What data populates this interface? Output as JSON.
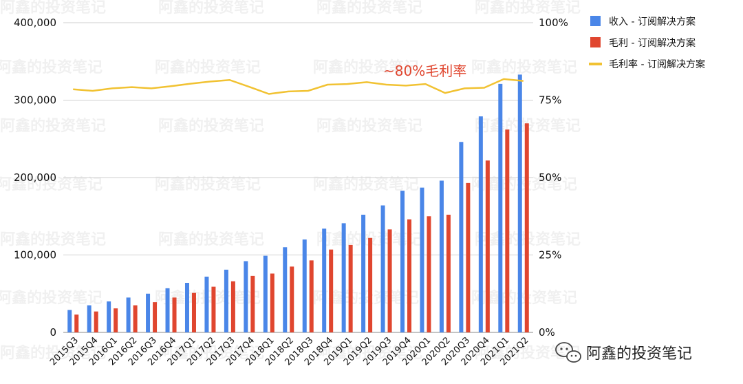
{
  "watermark": {
    "text": "阿鑫的投资笔记"
  },
  "brand": {
    "text": "阿鑫的投资笔记",
    "icon": "wechat-icon"
  },
  "chart_data": {
    "type": "bar",
    "categories": [
      "2015Q3",
      "2015Q4",
      "2016Q1",
      "2016Q2",
      "2016Q3",
      "2016Q4",
      "2017Q1",
      "2017Q2",
      "2017Q3",
      "2017Q4",
      "2018Q1",
      "2018Q2",
      "2018Q3",
      "2018Q4",
      "2019Q1",
      "2019Q2",
      "2019Q3",
      "2019Q4",
      "2020Q1",
      "2020Q2",
      "2020Q3",
      "2020Q4",
      "2021Q1",
      "2021Q2"
    ],
    "series": [
      {
        "name": "收入 - 订阅解决方案",
        "type": "bar",
        "axis": "left",
        "color": "#4a86e8",
        "values": [
          29000,
          35000,
          40000,
          45000,
          50000,
          57000,
          64000,
          72000,
          81000,
          92000,
          99000,
          110000,
          120000,
          134000,
          141000,
          152000,
          164000,
          183000,
          187000,
          196000,
          246000,
          279000,
          321000,
          333000
        ]
      },
      {
        "name": "毛利 - 订阅解决方案",
        "type": "bar",
        "axis": "left",
        "color": "#e0462f",
        "values": [
          23000,
          27000,
          31000,
          35000,
          39000,
          45000,
          51000,
          59000,
          66000,
          73000,
          76000,
          85000,
          93000,
          107000,
          113000,
          122000,
          133000,
          146000,
          150000,
          152000,
          193000,
          222000,
          262000,
          270000
        ]
      },
      {
        "name": "毛利率 - 订阅解决方案",
        "type": "line",
        "axis": "right",
        "color": "#f1c232",
        "values": [
          0.785,
          0.78,
          0.788,
          0.792,
          0.788,
          0.795,
          0.803,
          0.81,
          0.815,
          0.793,
          0.77,
          0.778,
          0.78,
          0.8,
          0.802,
          0.808,
          0.8,
          0.797,
          0.802,
          0.773,
          0.788,
          0.79,
          0.818,
          0.812
        ]
      }
    ],
    "ylim_left": [
      0,
      400000
    ],
    "yticks_left": [
      "0",
      "100,000",
      "200,000",
      "300,000",
      "400,000"
    ],
    "ylim_right": [
      0,
      1
    ],
    "yticks_right": [
      "0%",
      "25%",
      "50%",
      "75%",
      "100%"
    ],
    "grid": true,
    "legend_position": "top-right",
    "annotation": "~80%毛利率"
  }
}
